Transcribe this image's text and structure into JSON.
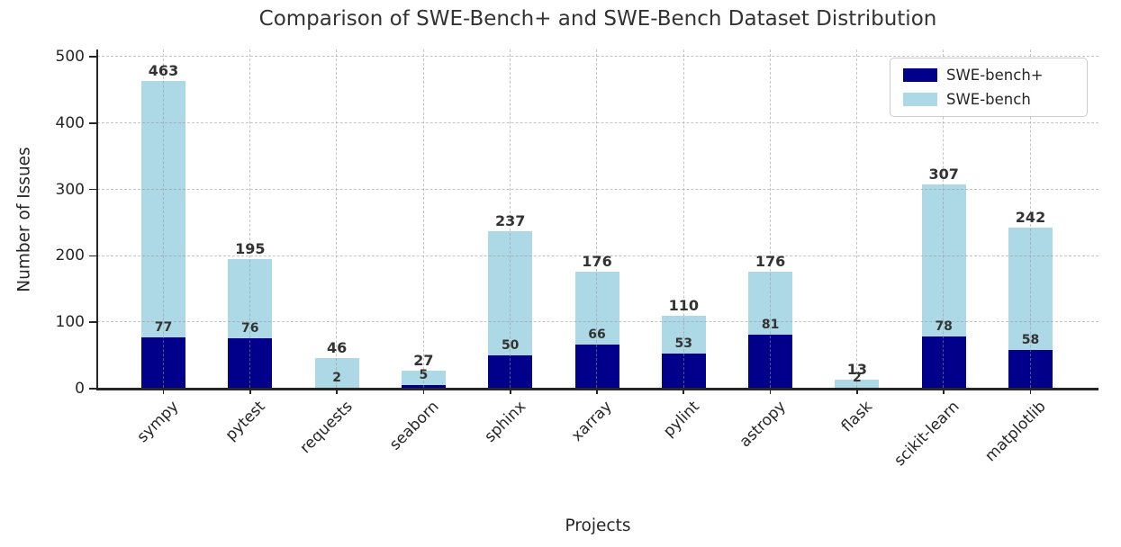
{
  "figure": {
    "title": "Comparison of SWE-Bench+ and SWE-Bench Dataset Distribution",
    "xlabel": "Projects",
    "ylabel": "Number of Issues"
  },
  "legend": {
    "items": [
      {
        "label": "SWE-bench+",
        "color": "#00008B"
      },
      {
        "label": "SWE-bench",
        "color": "#ADD8E6"
      }
    ]
  },
  "chart_data": {
    "type": "bar",
    "mode": "overlay",
    "title": "Comparison of SWE-Bench+ and SWE-Bench Dataset Distribution",
    "xlabel": "Projects",
    "ylabel": "Number of Issues",
    "categories": [
      "sympy",
      "pytest",
      "requests",
      "seaborn",
      "sphinx",
      "xarray",
      "pylint",
      "astropy",
      "flask",
      "scikit-learn",
      "matplotlib"
    ],
    "series": [
      {
        "name": "SWE-bench+",
        "color": "#00008B",
        "values": [
          77,
          76,
          2,
          5,
          50,
          66,
          53,
          81,
          2,
          78,
          58
        ]
      },
      {
        "name": "SWE-bench",
        "color": "#ADD8E6",
        "values": [
          463,
          195,
          46,
          27,
          237,
          176,
          110,
          176,
          13,
          307,
          242
        ]
      }
    ],
    "ylim": [
      0,
      500
    ],
    "yticks": [
      0,
      100,
      200,
      300,
      400,
      500
    ],
    "grid": true,
    "grid_style": "dashed",
    "legend_position": "upper right",
    "bar_label_color": "#333333",
    "axis_color": "#262626",
    "background": "#ffffff"
  }
}
